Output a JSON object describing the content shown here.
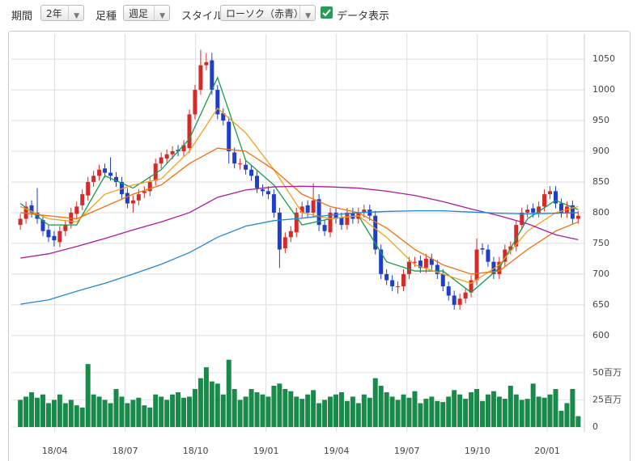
{
  "toolbar": {
    "period_label": "期間",
    "period": "2年",
    "bar_label": "足種",
    "bar": "週足",
    "style_label": "スタイル",
    "style": "ローソク（赤青）",
    "show_data": "データ表示"
  },
  "chart_data": {
    "type": "candlestick",
    "up_color": "#d42a2a",
    "down_color": "#1f3fc8",
    "grid": true,
    "xlim": [
      -1.6,
      100.1
    ],
    "xticks": [
      {
        "value": 6.1,
        "label": "18/04"
      },
      {
        "value": 18.6,
        "label": "18/07"
      },
      {
        "value": 31.1,
        "label": "18/10"
      },
      {
        "value": 43.6,
        "label": "19/01"
      },
      {
        "value": 56.1,
        "label": "19/04"
      },
      {
        "value": 68.6,
        "label": "19/07"
      },
      {
        "value": 81.1,
        "label": "19/10"
      },
      {
        "value": 93.5,
        "label": "20/01"
      }
    ],
    "ylim": [
      580,
      1087
    ],
    "yticks": [
      600,
      650,
      700,
      750,
      800,
      850,
      900,
      950,
      1000,
      1050
    ],
    "open": [
      780,
      790,
      812,
      800,
      788,
      772,
      762,
      752,
      770,
      782,
      798,
      812,
      828,
      850,
      860,
      872,
      865,
      858,
      850,
      832,
      815,
      820,
      832,
      835,
      852,
      880,
      888,
      895,
      902,
      900,
      905,
      960,
      1000,
      1040,
      1048,
      1000,
      962,
      948,
      898,
      880,
      878,
      870,
      860,
      838,
      835,
      830,
      800,
      742,
      760,
      768,
      800,
      812,
      800,
      822,
      780,
      768,
      800,
      792,
      780,
      800,
      790,
      800,
      805,
      795,
      740,
      700,
      690,
      680,
      680,
      700,
      720,
      722,
      710,
      725,
      715,
      700,
      680,
      665,
      650,
      660,
      670,
      690,
      742,
      740,
      720,
      700,
      720,
      740,
      745,
      780,
      800,
      807,
      800,
      810,
      830,
      835,
      815,
      800,
      812,
      790
    ],
    "high": [
      798,
      818,
      820,
      840,
      796,
      780,
      770,
      778,
      788,
      808,
      818,
      838,
      858,
      868,
      878,
      880,
      890,
      866,
      858,
      840,
      828,
      838,
      843,
      858,
      888,
      898,
      903,
      908,
      910,
      918,
      968,
      1008,
      1065,
      1060,
      1060,
      1008,
      970,
      956,
      906,
      888,
      886,
      878,
      868,
      846,
      843,
      838,
      808,
      768,
      778,
      808,
      818,
      820,
      848,
      830,
      788,
      808,
      808,
      800,
      808,
      808,
      808,
      813,
      813,
      803,
      748,
      708,
      698,
      688,
      708,
      728,
      728,
      730,
      733,
      733,
      723,
      708,
      688,
      673,
      668,
      678,
      698,
      758,
      750,
      748,
      728,
      728,
      748,
      753,
      788,
      808,
      813,
      815,
      818,
      838,
      843,
      843,
      823,
      818,
      820,
      803
    ],
    "low": [
      772,
      782,
      792,
      782,
      762,
      752,
      745,
      744,
      762,
      774,
      790,
      804,
      820,
      842,
      852,
      857,
      852,
      842,
      822,
      807,
      800,
      812,
      824,
      827,
      844,
      872,
      880,
      887,
      892,
      892,
      897,
      952,
      992,
      1032,
      992,
      952,
      942,
      880,
      872,
      870,
      862,
      852,
      832,
      827,
      822,
      792,
      710,
      734,
      752,
      760,
      792,
      792,
      792,
      770,
      762,
      760,
      782,
      772,
      772,
      782,
      782,
      792,
      787,
      732,
      692,
      682,
      672,
      668,
      672,
      692,
      712,
      702,
      702,
      707,
      692,
      672,
      657,
      642,
      642,
      652,
      662,
      682,
      732,
      712,
      692,
      692,
      712,
      732,
      737,
      772,
      792,
      792,
      792,
      802,
      822,
      807,
      792,
      792,
      782,
      782
    ],
    "close": [
      790,
      810,
      800,
      790,
      770,
      760,
      755,
      770,
      780,
      800,
      810,
      830,
      850,
      860,
      870,
      865,
      860,
      850,
      830,
      815,
      820,
      830,
      835,
      850,
      880,
      890,
      895,
      900,
      900,
      910,
      960,
      1000,
      1040,
      1045,
      1000,
      960,
      950,
      900,
      880,
      880,
      870,
      860,
      840,
      835,
      830,
      800,
      740,
      760,
      770,
      800,
      810,
      800,
      820,
      780,
      770,
      800,
      790,
      780,
      800,
      790,
      800,
      805,
      795,
      740,
      700,
      690,
      680,
      680,
      700,
      720,
      720,
      710,
      725,
      715,
      700,
      680,
      665,
      650,
      660,
      670,
      690,
      740,
      740,
      720,
      700,
      720,
      740,
      745,
      780,
      800,
      805,
      800,
      810,
      830,
      835,
      815,
      800,
      810,
      790,
      795
    ],
    "lines": [
      {
        "color": "#1a9a4a",
        "x": [
          0,
          5,
          10,
          15,
          20,
          25,
          30,
          35,
          40,
          45,
          50,
          55,
          60,
          65,
          70,
          75,
          80,
          85,
          90,
          95,
          99
        ],
        "values": [
          815,
          780,
          780,
          860,
          840,
          870,
          920,
          1020,
          885,
          845,
          780,
          790,
          795,
          720,
          705,
          705,
          670,
          710,
          790,
          820,
          805
        ]
      },
      {
        "color": "#f0a020",
        "x": [
          0,
          5,
          10,
          15,
          20,
          25,
          30,
          35,
          40,
          45,
          50,
          55,
          60,
          65,
          70,
          75,
          80,
          85,
          90,
          95,
          99
        ],
        "values": [
          810,
          790,
          785,
          830,
          845,
          855,
          900,
          970,
          930,
          870,
          800,
          790,
          795,
          760,
          715,
          700,
          685,
          715,
          770,
          800,
          810
        ]
      },
      {
        "color": "#f07010",
        "x": [
          0,
          5,
          10,
          15,
          20,
          25,
          30,
          35,
          40,
          45,
          50,
          55,
          60,
          65,
          70,
          75,
          80,
          85,
          90,
          95,
          99
        ],
        "values": [
          800,
          795,
          790,
          810,
          830,
          845,
          880,
          905,
          900,
          870,
          830,
          810,
          800,
          775,
          740,
          715,
          700,
          705,
          740,
          770,
          785
        ]
      },
      {
        "color": "#b0189a",
        "x": [
          0,
          5,
          10,
          15,
          20,
          25,
          30,
          35,
          40,
          45,
          50,
          55,
          60,
          65,
          70,
          75,
          80,
          85,
          90,
          95,
          99
        ],
        "values": [
          726,
          733,
          745,
          758,
          772,
          785,
          800,
          825,
          837,
          842,
          843,
          842,
          840,
          835,
          828,
          818,
          806,
          795,
          782,
          764,
          756
        ]
      },
      {
        "color": "#2088d8",
        "x": [
          0,
          5,
          10,
          15,
          20,
          25,
          30,
          35,
          40,
          45,
          50,
          55,
          60,
          65,
          70,
          75,
          80,
          85,
          90,
          95,
          99
        ],
        "values": [
          651,
          658,
          672,
          685,
          700,
          716,
          735,
          760,
          778,
          787,
          791,
          796,
          800,
          802,
          803,
          803,
          801,
          799,
          798,
          799,
          800
        ]
      }
    ],
    "volume": {
      "color": "#1a8a4a",
      "ylim": [
        0,
        70
      ],
      "yticks": [
        0,
        {
          "value": 25,
          "label": "25百万"
        },
        {
          "value": 50,
          "label": "50百万"
        }
      ],
      "values": [
        25,
        28,
        32,
        27,
        30,
        22,
        25,
        30,
        22,
        25,
        20,
        18,
        58,
        30,
        28,
        25,
        22,
        35,
        28,
        22,
        25,
        27,
        20,
        18,
        30,
        28,
        25,
        30,
        32,
        27,
        28,
        35,
        45,
        55,
        42,
        40,
        30,
        62,
        35,
        25,
        28,
        35,
        32,
        30,
        28,
        38,
        40,
        35,
        33,
        28,
        26,
        30,
        34,
        22,
        25,
        28,
        30,
        32,
        24,
        28,
        22,
        30,
        27,
        45,
        38,
        32,
        28,
        25,
        30,
        27,
        33,
        22,
        26,
        28,
        24,
        23,
        28,
        34,
        30,
        26,
        32,
        35,
        24,
        30,
        33,
        28,
        26,
        38,
        30,
        25,
        26,
        40,
        28,
        27,
        30,
        35,
        15,
        22,
        35,
        10
      ]
    }
  }
}
